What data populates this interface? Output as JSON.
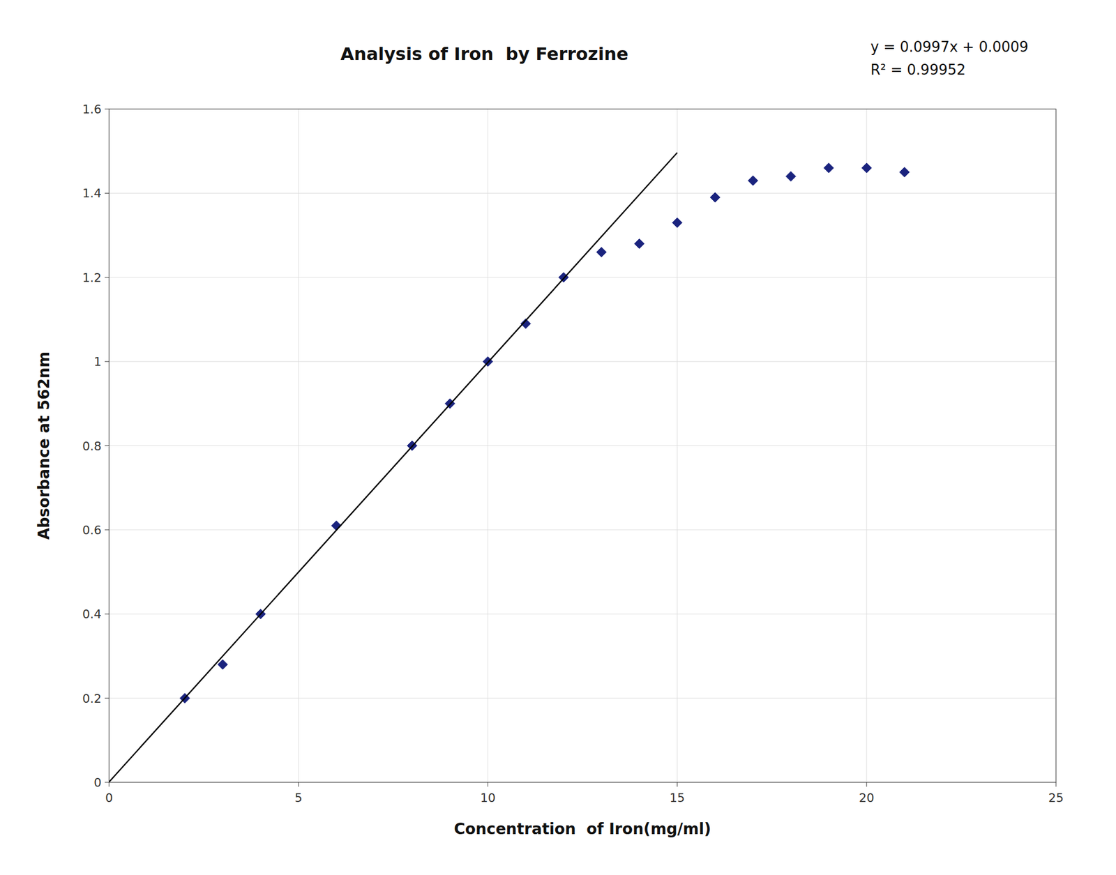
{
  "chart_data": {
    "type": "scatter",
    "title": "Analysis of Iron  by Ferrozine",
    "xlabel": "Concentration  of Iron(mg/ml)",
    "ylabel": "Absorbance at 562nm",
    "annotations": [
      "y = 0.0997x + 0.0009",
      "R² = 0.99952"
    ],
    "series": [
      {
        "type": "scatter",
        "marker": "diamond",
        "color": "#1a237e",
        "x": [
          2.0,
          3.0,
          4.0,
          6.0,
          8.0,
          9.0,
          10.0,
          11.0,
          12.0,
          13.0,
          14.0,
          15.0,
          16.0,
          17.0,
          18.0,
          19.0,
          20.0,
          21.0
        ],
        "values": [
          0.2,
          0.28,
          0.4,
          0.61,
          0.8,
          0.9,
          1.0,
          1.09,
          1.2,
          1.26,
          1.28,
          1.33,
          1.39,
          1.43,
          1.44,
          1.46,
          1.46,
          1.45
        ]
      },
      {
        "type": "line",
        "line_style": "solid",
        "color": "#000000",
        "x": [
          0,
          15
        ],
        "values": [
          0.0009,
          1.4964
        ]
      }
    ],
    "xlim": [
      0,
      25
    ],
    "ylim": [
      0,
      1.6
    ],
    "xticks": [
      0,
      5,
      10,
      15,
      20,
      25
    ],
    "yticks": [
      0,
      0.2,
      0.4,
      0.6,
      0.8,
      1,
      1.2,
      1.4,
      1.6
    ],
    "grid": true
  }
}
